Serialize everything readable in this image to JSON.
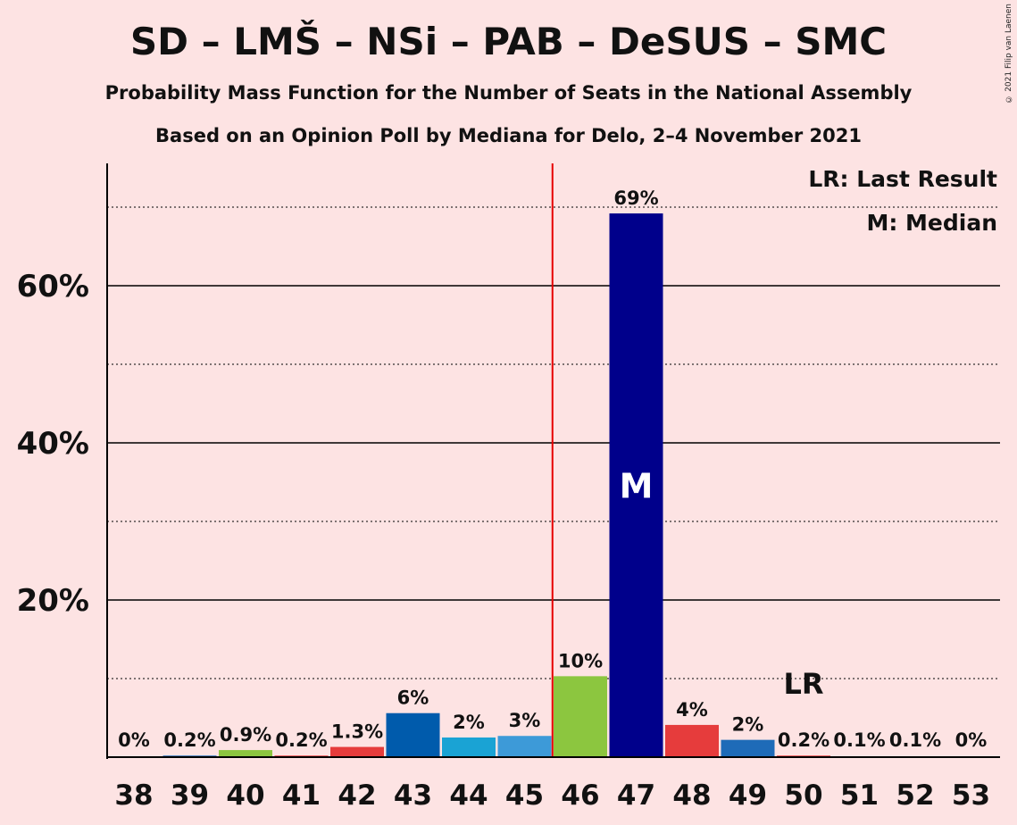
{
  "title": "SD – LMŠ – NSi – PAB – DeSUS – SMC",
  "subtitle": "Probability Mass Function for the Number of Seats in the National Assembly",
  "subtitle2": "Based on an Opinion Poll by Mediana for Delo, 2–4 November 2021",
  "copyright": "© 2021 Filip van Laenen",
  "legend": {
    "last_result": "LR: Last Result",
    "median": "M: Median"
  },
  "chart_data": {
    "type": "bar",
    "title": "SD – LMŠ – NSi – PAB – DeSUS – SMC",
    "xlabel": "",
    "ylabel": "",
    "ylim": [
      0,
      75
    ],
    "y_ticks": [
      20,
      40,
      60
    ],
    "y_tick_labels": [
      "20%",
      "40%",
      "60%"
    ],
    "y_dotted_lines": [
      10,
      30,
      50,
      70
    ],
    "categories": [
      "38",
      "39",
      "40",
      "41",
      "42",
      "43",
      "44",
      "45",
      "46",
      "47",
      "48",
      "49",
      "50",
      "51",
      "52",
      "53"
    ],
    "values": [
      0,
      0.2,
      0.9,
      0.2,
      1.3,
      5.6,
      2.5,
      2.7,
      10.3,
      69.2,
      4.1,
      2.2,
      0.2,
      0.1,
      0.1,
      0
    ],
    "labels": [
      "0%",
      "0.2%",
      "0.9%",
      "0.2%",
      "1.3%",
      "6%",
      "2%",
      "3%",
      "10%",
      "69%",
      "4%",
      "2%",
      "0.2%",
      "0.1%",
      "0.1%",
      "0%"
    ],
    "colors": [
      "#e63c3c",
      "#1e6bb8",
      "#8cc63f",
      "#e63c3c",
      "#e63c3c",
      "#005bac",
      "#1aa3d4",
      "#3d9ad8",
      "#8cc63f",
      "#00008b",
      "#e63c3c",
      "#1e6bb8",
      "#e63c3c",
      "#1e6bb8",
      "#8cc63f",
      "#e63c3c"
    ],
    "majority_line_after": "45",
    "majority_line_color": "#e60000",
    "median_category": "47",
    "median_marker": "M",
    "last_result_category": "50",
    "last_result_marker": "LR"
  }
}
